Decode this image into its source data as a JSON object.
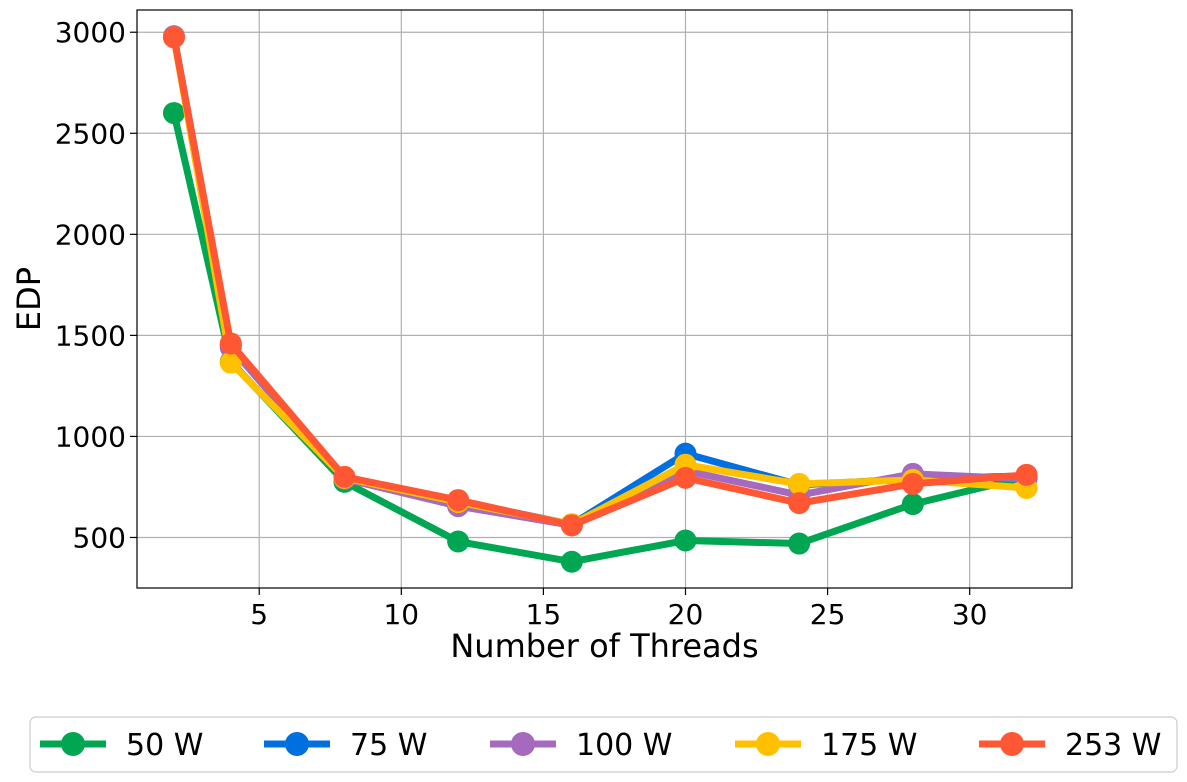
{
  "chart_data": {
    "type": "line",
    "title": "",
    "xlabel": "Number of Threads",
    "ylabel": "EDP",
    "xlim": [
      0.7,
      33.6
    ],
    "ylim": [
      250,
      3110
    ],
    "xticks": [
      5,
      10,
      15,
      20,
      25,
      30
    ],
    "yticks": [
      500,
      1000,
      1500,
      2000,
      2500,
      3000
    ],
    "grid": true,
    "legend_position": "bottom",
    "x": [
      2,
      4,
      8,
      12,
      16,
      20,
      24,
      28,
      32
    ],
    "series": [
      {
        "name": "50 W",
        "color": "#00a651",
        "values": [
          2600,
          1370,
          775,
          480,
          380,
          485,
          470,
          665,
          800
        ]
      },
      {
        "name": "75 W",
        "color": "#0070e0",
        "values": [
          2980,
          1450,
          795,
          680,
          565,
          915,
          760,
          790,
          805
        ]
      },
      {
        "name": "100 W",
        "color": "#a569bd",
        "values": [
          2980,
          1440,
          790,
          655,
          560,
          830,
          710,
          815,
          790
        ]
      },
      {
        "name": "175 W",
        "color": "#ffc000",
        "values": [
          2975,
          1365,
          795,
          675,
          565,
          860,
          765,
          785,
          745
        ]
      },
      {
        "name": "253 W",
        "color": "#ff5733",
        "values": [
          2975,
          1460,
          800,
          685,
          560,
          795,
          670,
          765,
          810
        ]
      }
    ]
  }
}
